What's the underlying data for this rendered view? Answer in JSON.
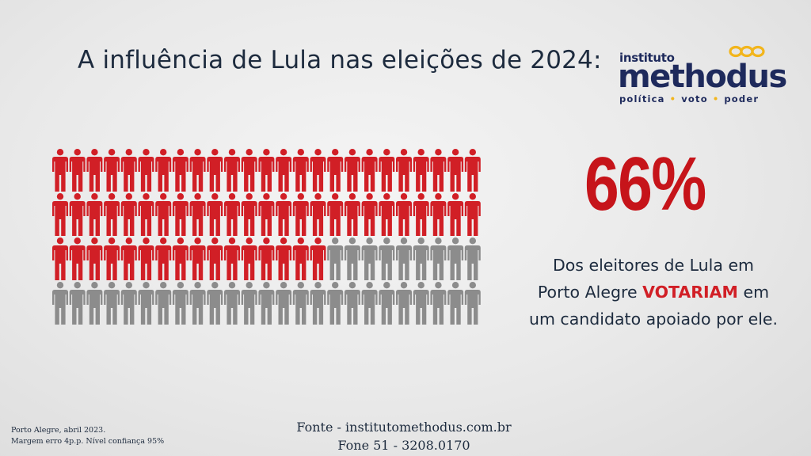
{
  "title": "A influência de Lula nas eleições de 2024:",
  "logo": {
    "line1": "instituto",
    "line2": "methodus",
    "tagline": [
      "política",
      "voto",
      "poder"
    ],
    "ring_color": "#f2b51c",
    "text_color": "#1e2a5c"
  },
  "chart_data": {
    "type": "pictogram",
    "total": 100,
    "highlighted": 66,
    "rows": 4,
    "columns": 25,
    "highlight_color": "#d11f26",
    "rest_color": "#8c8c8c",
    "icon": "person-icon"
  },
  "stat": {
    "percent": "66%",
    "line1": "Dos eleitores de Lula em",
    "line2_pre": "Porto Alegre ",
    "line2_highlight": "VOTARIAM",
    "line2_post": " em",
    "line3": "um candidato apoiado por ele."
  },
  "source": {
    "line1": "Fonte - institutomethodus.com.br",
    "line2": "Fone 51 - 3208.0170"
  },
  "note": {
    "line1": "Porto Alegre, abril 2023.",
    "line2": "Margem erro 4p.p. Nível confiança 95%"
  }
}
